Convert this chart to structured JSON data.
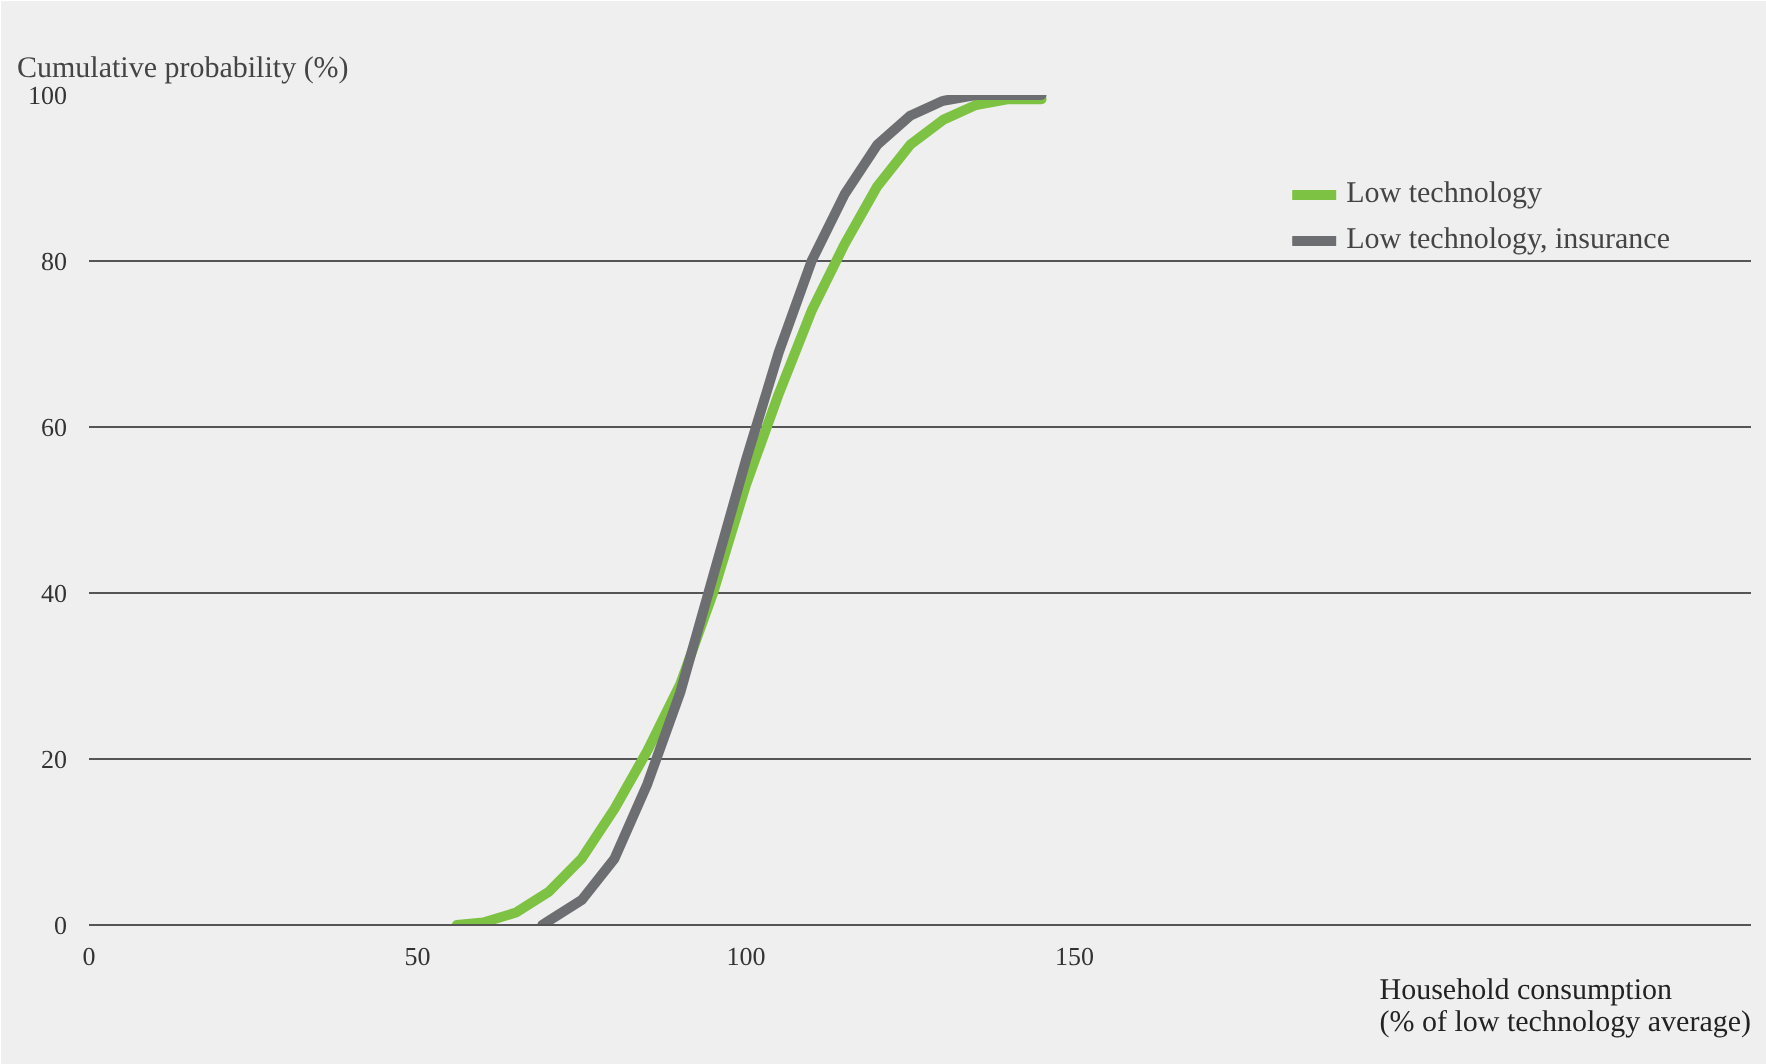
{
  "chart_data": {
    "type": "line",
    "xlabel": "Household consumption\n(% of low technology average)",
    "ylabel": "Cumulative probability (%)",
    "xlim": [
      0,
      253
    ],
    "ylim": [
      0,
      100
    ],
    "xticks": [
      0,
      50,
      100,
      150
    ],
    "yticks": [
      0,
      20,
      40,
      60,
      80,
      100
    ],
    "grid": "y",
    "legend": "top right",
    "line_style": "solid",
    "series": [
      {
        "name": "Low technology",
        "color": "#7dc242",
        "x": [
          56,
          60,
          65,
          70,
          75,
          80,
          85,
          90,
          95,
          100,
          105,
          110,
          115,
          120,
          125,
          130,
          135,
          140,
          145
        ],
        "values": [
          0,
          0.3,
          1.5,
          4,
          8,
          14,
          21,
          29,
          40,
          53,
          64,
          74,
          82,
          89,
          94,
          97,
          98.8,
          99.5,
          99.5
        ]
      },
      {
        "name": "Low technology, insurance",
        "color": "#6d6e71",
        "x": [
          69,
          70,
          75,
          80,
          85,
          90,
          95,
          100,
          105,
          110,
          115,
          120,
          125,
          130,
          135,
          145
        ],
        "values": [
          0,
          0.5,
          3,
          8,
          17,
          28,
          42,
          56,
          69,
          80,
          88,
          94,
          97.5,
          99.3,
          100,
          100
        ]
      }
    ]
  }
}
